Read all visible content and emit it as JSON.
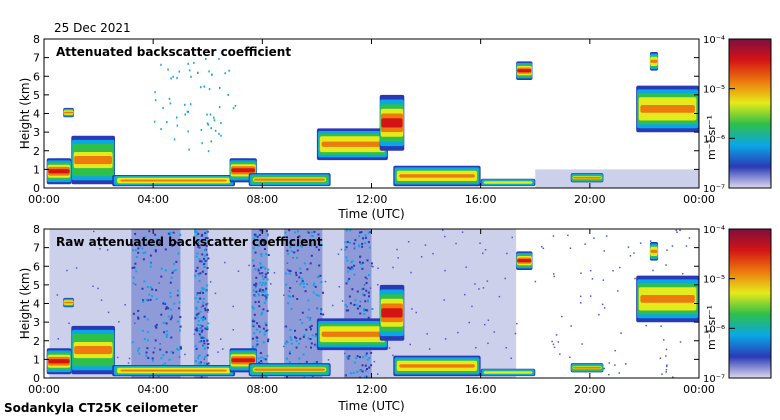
{
  "header": {
    "date": "25 Dec 2021"
  },
  "footer": {
    "source": "Sodankyla CT25K ceilometer"
  },
  "colors": {
    "missing": "#cdd0ea",
    "colormap": [
      "#ddd9ef",
      "#2a3ab6",
      "#0aa7e6",
      "#2fbf4a",
      "#e6ea1a",
      "#ec7a0e",
      "#d41414",
      "#7e0f3e"
    ]
  },
  "chart_data": [
    {
      "type": "heatmap",
      "title": "Attenuated backscatter coefficient",
      "xlabel": "Time (UTC)",
      "ylabel": "Height (km)",
      "xlim": [
        0,
        24
      ],
      "ylim": [
        0,
        8
      ],
      "x_ticks": [
        "00:00",
        "04:00",
        "08:00",
        "12:00",
        "16:00",
        "20:00",
        "00:00"
      ],
      "y_ticks": [
        "0",
        "1",
        "2",
        "3",
        "4",
        "5",
        "6",
        "7",
        "8"
      ],
      "colorbar": {
        "label": "m⁻¹ sr⁻¹",
        "ticks": [
          "10⁻⁴",
          "10⁻⁵",
          "10⁻⁶",
          "10⁻⁷"
        ],
        "log_range": [
          -7,
          -4
        ]
      },
      "cloud_layers": [
        {
          "t0": 0.1,
          "t1": 1.0,
          "base_km": 0.2,
          "top_km": 1.6,
          "intensity": 0.65
        },
        {
          "t0": 0.7,
          "t1": 1.1,
          "base_km": 3.8,
          "top_km": 4.3,
          "intensity": 0.6
        },
        {
          "t0": 1.0,
          "t1": 2.6,
          "base_km": 0.2,
          "top_km": 2.8,
          "intensity": 0.55
        },
        {
          "t0": 2.5,
          "t1": 7.0,
          "base_km": 0.1,
          "top_km": 0.7,
          "intensity": 0.6
        },
        {
          "t0": 6.8,
          "t1": 7.8,
          "base_km": 0.3,
          "top_km": 1.6,
          "intensity": 0.65
        },
        {
          "t0": 7.5,
          "t1": 10.5,
          "base_km": 0.1,
          "top_km": 0.8,
          "intensity": 0.55
        },
        {
          "t0": 10.0,
          "t1": 12.6,
          "base_km": 1.5,
          "top_km": 3.2,
          "intensity": 0.6
        },
        {
          "t0": 12.3,
          "t1": 13.2,
          "base_km": 2.0,
          "top_km": 5.0,
          "intensity": 0.7
        },
        {
          "t0": 12.8,
          "t1": 16.0,
          "base_km": 0.1,
          "top_km": 1.2,
          "intensity": 0.6
        },
        {
          "t0": 16.0,
          "t1": 18.0,
          "base_km": 0.1,
          "top_km": 0.5,
          "intensity": 0.45
        },
        {
          "t0": 17.3,
          "t1": 17.9,
          "base_km": 5.8,
          "top_km": 6.8,
          "intensity": 0.7
        },
        {
          "t0": 19.3,
          "t1": 20.5,
          "base_km": 0.3,
          "top_km": 0.8,
          "intensity": 0.55
        },
        {
          "t0": 21.7,
          "t1": 24.0,
          "base_km": 3.0,
          "top_km": 5.5,
          "intensity": 0.6
        },
        {
          "t0": 22.2,
          "t1": 22.5,
          "base_km": 6.3,
          "top_km": 7.3,
          "intensity": 0.6
        }
      ]
    },
    {
      "type": "heatmap",
      "title": "Raw attenuated backscatter coefficient",
      "xlabel": "Time (UTC)",
      "ylabel": "Height (km)",
      "xlim": [
        0,
        24
      ],
      "ylim": [
        0,
        8
      ],
      "x_ticks": [
        "00:00",
        "04:00",
        "08:00",
        "12:00",
        "16:00",
        "20:00",
        "00:00"
      ],
      "y_ticks": [
        "0",
        "1",
        "2",
        "3",
        "4",
        "5",
        "6",
        "7",
        "8"
      ],
      "colorbar": {
        "label": "m⁻¹ sr⁻¹",
        "ticks": [
          "10⁻⁴",
          "10⁻⁵",
          "10⁻⁶",
          "10⁻⁷"
        ],
        "log_range": [
          -7,
          -4
        ]
      },
      "noise_bands": [
        {
          "t0": 3.2,
          "t1": 5.0
        },
        {
          "t0": 5.5,
          "t1": 6.0
        },
        {
          "t0": 7.6,
          "t1": 8.2
        },
        {
          "t0": 8.8,
          "t1": 10.2
        },
        {
          "t0": 11.0,
          "t1": 12.0
        }
      ],
      "cloud_layers": [
        {
          "t0": 0.1,
          "t1": 1.0,
          "base_km": 0.2,
          "top_km": 1.6,
          "intensity": 0.65
        },
        {
          "t0": 0.7,
          "t1": 1.1,
          "base_km": 3.8,
          "top_km": 4.3,
          "intensity": 0.6
        },
        {
          "t0": 1.0,
          "t1": 2.6,
          "base_km": 0.2,
          "top_km": 2.8,
          "intensity": 0.55
        },
        {
          "t0": 2.5,
          "t1": 7.0,
          "base_km": 0.1,
          "top_km": 0.7,
          "intensity": 0.6
        },
        {
          "t0": 6.8,
          "t1": 7.8,
          "base_km": 0.3,
          "top_km": 1.6,
          "intensity": 0.65
        },
        {
          "t0": 7.5,
          "t1": 10.5,
          "base_km": 0.1,
          "top_km": 0.8,
          "intensity": 0.55
        },
        {
          "t0": 10.0,
          "t1": 12.6,
          "base_km": 1.5,
          "top_km": 3.2,
          "intensity": 0.6
        },
        {
          "t0": 12.3,
          "t1": 13.2,
          "base_km": 2.0,
          "top_km": 5.0,
          "intensity": 0.7
        },
        {
          "t0": 12.8,
          "t1": 16.0,
          "base_km": 0.1,
          "top_km": 1.2,
          "intensity": 0.6
        },
        {
          "t0": 16.0,
          "t1": 18.0,
          "base_km": 0.1,
          "top_km": 0.5,
          "intensity": 0.45
        },
        {
          "t0": 17.3,
          "t1": 17.9,
          "base_km": 5.8,
          "top_km": 6.8,
          "intensity": 0.7
        },
        {
          "t0": 19.3,
          "t1": 20.5,
          "base_km": 0.3,
          "top_km": 0.8,
          "intensity": 0.55
        },
        {
          "t0": 21.7,
          "t1": 24.0,
          "base_km": 3.0,
          "top_km": 5.5,
          "intensity": 0.6
        },
        {
          "t0": 22.2,
          "t1": 22.5,
          "base_km": 6.3,
          "top_km": 7.3,
          "intensity": 0.6
        }
      ]
    }
  ]
}
